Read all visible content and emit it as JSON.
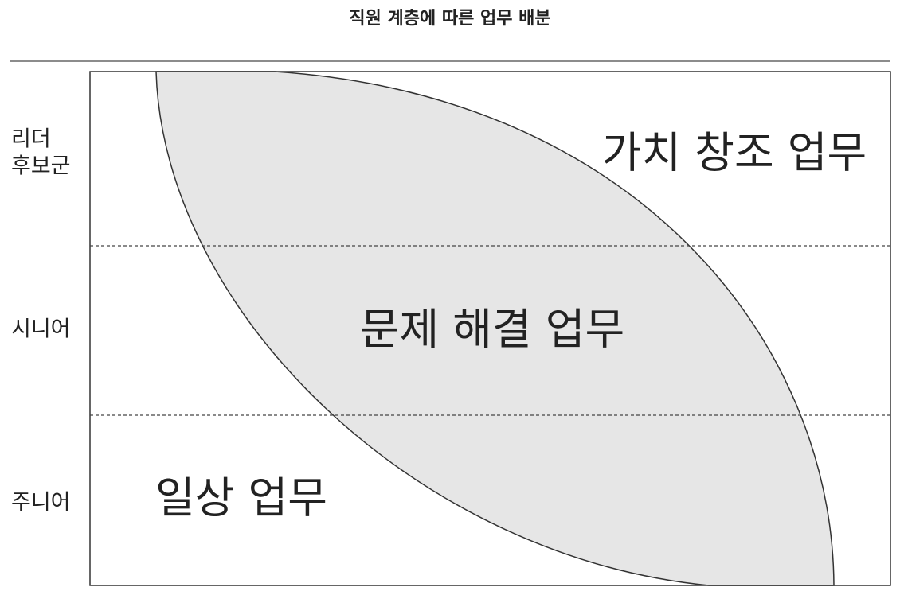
{
  "title": "직원 계층에 따른 업무 배분",
  "rows": [
    {
      "label_lines": [
        "리더",
        "후보군"
      ]
    },
    {
      "label_lines": [
        "시니어"
      ]
    },
    {
      "label_lines": [
        "주니어"
      ]
    }
  ],
  "regions": [
    {
      "label": "가치 창조 업무"
    },
    {
      "label": "문제 해결 업무"
    },
    {
      "label": "일상 업무"
    }
  ]
}
